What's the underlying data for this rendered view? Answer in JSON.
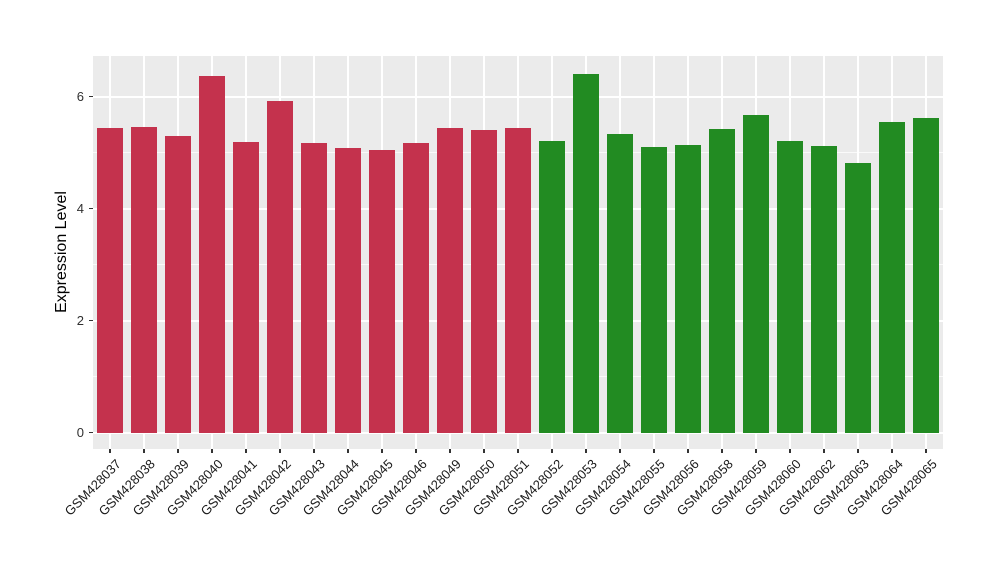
{
  "figure": {
    "background": "#FFFFFF"
  },
  "y_axis": {
    "title": "Expression Level",
    "tick_labels": [
      "0",
      "2",
      "4",
      "6"
    ]
  },
  "x_axis": {
    "title": ""
  },
  "chart_data": {
    "type": "bar",
    "title": "",
    "xlabel": "",
    "ylabel": "Expression Level",
    "categories": [
      "GSM428037",
      "GSM428038",
      "GSM428039",
      "GSM428040",
      "GSM428041",
      "GSM428042",
      "GSM428043",
      "GSM428044",
      "GSM428045",
      "GSM428046",
      "GSM428049",
      "GSM428050",
      "GSM428051",
      "GSM428052",
      "GSM428053",
      "GSM428054",
      "GSM428055",
      "GSM428056",
      "GSM428058",
      "GSM428059",
      "GSM428060",
      "GSM428062",
      "GSM428063",
      "GSM428064",
      "GSM428065"
    ],
    "values": [
      5.45,
      5.47,
      5.3,
      6.38,
      5.2,
      5.92,
      5.17,
      5.08,
      5.05,
      5.18,
      5.45,
      5.4,
      5.45,
      5.21,
      6.4,
      5.34,
      5.11,
      5.14,
      5.42,
      5.67,
      5.21,
      5.12,
      4.82,
      5.56,
      5.62
    ],
    "colors": [
      "#C4324D",
      "#C4324D",
      "#C4324D",
      "#C4324D",
      "#C4324D",
      "#C4324D",
      "#C4324D",
      "#C4324D",
      "#C4324D",
      "#C4324D",
      "#C4324D",
      "#C4324D",
      "#C4324D",
      "#228B22",
      "#228B22",
      "#228B22",
      "#228B22",
      "#228B22",
      "#228B22",
      "#228B22",
      "#228B22",
      "#228B22",
      "#228B22",
      "#228B22",
      "#228B22"
    ],
    "color_groups": [
      {
        "color": "#C4324D",
        "first_category": "GSM428037",
        "last_category": "GSM428051",
        "count": 13
      },
      {
        "color": "#228B22",
        "first_category": "GSM428052",
        "last_category": "GSM428065",
        "count": 12
      }
    ],
    "yticks": [
      0,
      2,
      4,
      6
    ],
    "yticks_minor": [
      1,
      3,
      5
    ],
    "ylim": [
      -0.29,
      6.73
    ],
    "bar_width_fraction": 0.75,
    "grid": "on",
    "legend": "none",
    "panel_background": "#EBEBEB",
    "gridline_color": "#FFFFFF",
    "axis_text_color": "#303030"
  }
}
